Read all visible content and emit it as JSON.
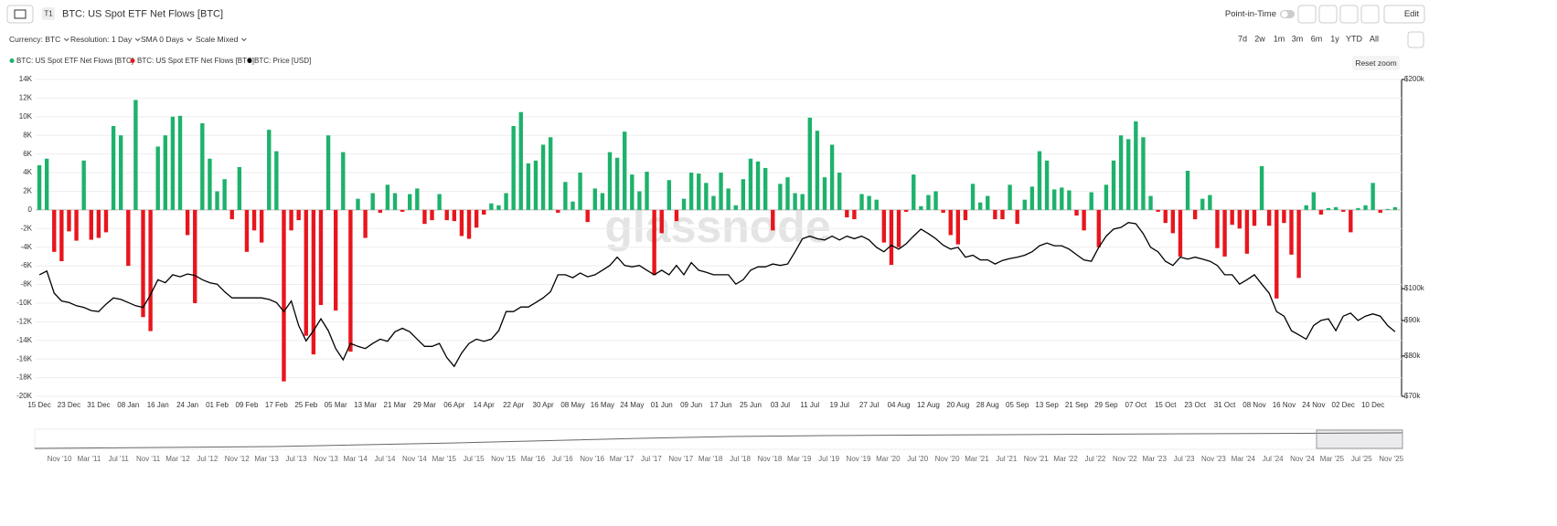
{
  "ui": {
    "title": "BTC: US Spot ETF Net Flows [BTC]",
    "tier": "T1",
    "point_in_time": "Point-in-Time",
    "edit": "Edit",
    "controls": [
      "Currency: BTC",
      "Resolution: 1 Day",
      "SMA 0 Days",
      "Scale Mixed"
    ],
    "ranges": [
      "7d",
      "2w",
      "1m",
      "3m",
      "6m",
      "1y",
      "YTD",
      "All"
    ],
    "reset_zoom": "Reset zoom",
    "watermark": "glassnode",
    "navigator_labels": [
      "Nov '10",
      "Mar '11",
      "Jul '11",
      "Nov '11",
      "Mar '12",
      "Jul '12",
      "Nov '12",
      "Mar '13",
      "Jul '13",
      "Nov '13",
      "Mar '14",
      "Jul '14",
      "Nov '14",
      "Mar '15",
      "Jul '15",
      "Nov '15",
      "Mar '16",
      "Jul '16",
      "Nov '16",
      "Mar '17",
      "Jul '17",
      "Nov '17",
      "Mar '18",
      "Jul '18",
      "Nov '18",
      "Mar '19",
      "Jul '19",
      "Nov '19",
      "Mar '20",
      "Jul '20",
      "Nov '20",
      "Mar '21",
      "Jul '21",
      "Nov '21",
      "Mar '22",
      "Jul '22",
      "Nov '22",
      "Mar '23",
      "Jul '23",
      "Nov '23",
      "Mar '24",
      "Jul '24",
      "Nov '24",
      "Mar '25",
      "Jul '25",
      "Nov '25"
    ]
  },
  "chart_data": {
    "type": "bar",
    "legend": "top-left",
    "grid": true,
    "categories": [
      "15 Dec",
      null,
      null,
      null,
      "23 Dec",
      null,
      null,
      null,
      "31 Dec",
      null,
      null,
      null,
      "08 Jan",
      null,
      null,
      null,
      "16 Jan",
      null,
      null,
      null,
      "24 Jan",
      null,
      null,
      null,
      "01 Feb",
      null,
      null,
      null,
      "09 Feb",
      null,
      null,
      null,
      "17 Feb",
      null,
      null,
      null,
      "25 Feb",
      null,
      null,
      null,
      "05 Mar",
      null,
      null,
      null,
      "13 Mar",
      null,
      null,
      null,
      "21 Mar",
      null,
      null,
      null,
      "29 Mar",
      null,
      null,
      null,
      "06 Apr",
      null,
      null,
      null,
      "14 Apr",
      null,
      null,
      null,
      "22 Apr",
      null,
      null,
      null,
      "30 Apr",
      null,
      null,
      null,
      "08 May",
      null,
      null,
      null,
      "16 May",
      null,
      null,
      null,
      "24 May",
      null,
      null,
      null,
      "01 Jun",
      null,
      null,
      null,
      "09 Jun",
      null,
      null,
      null,
      "17 Jun",
      null,
      null,
      null,
      "25 Jun",
      null,
      null,
      null,
      "03 Jul",
      null,
      null,
      null,
      "11 Jul",
      null,
      null,
      null,
      "19 Jul",
      null,
      null,
      null,
      "27 Jul",
      null,
      null,
      null,
      "04 Aug",
      null,
      null,
      null,
      "12 Aug",
      null,
      null,
      null,
      "20 Aug",
      null,
      null,
      null,
      "28 Aug",
      null,
      null,
      null,
      "05 Sep",
      null,
      null,
      null,
      "13 Sep",
      null,
      null,
      null,
      "21 Sep",
      null,
      null,
      null,
      "29 Sep",
      null,
      null,
      null,
      "07 Oct",
      null,
      null,
      null,
      "15 Oct",
      null,
      null,
      null,
      "23 Oct",
      null,
      null,
      null,
      "31 Oct",
      null,
      null,
      null,
      "08 Nov",
      null,
      null,
      null,
      "16 Nov",
      null,
      null,
      null,
      "24 Nov",
      null,
      null,
      null,
      "02 Dec",
      null,
      null,
      null,
      "10 Dec",
      null,
      null,
      null
    ],
    "ylim": [
      -20000,
      14000
    ],
    "yticks": [
      {
        "value": -20000,
        "label": "-20K"
      },
      {
        "value": -18000,
        "label": "-18K"
      },
      {
        "value": -16000,
        "label": "-16K"
      },
      {
        "value": -14000,
        "label": "-14K"
      },
      {
        "value": -12000,
        "label": "-12K"
      },
      {
        "value": -10000,
        "label": "-10K"
      },
      {
        "value": -8000,
        "label": "-8K"
      },
      {
        "value": -6000,
        "label": "-6K"
      },
      {
        "value": -4000,
        "label": "-4K"
      },
      {
        "value": -2000,
        "label": "-2K"
      },
      0,
      {
        "value": 2000,
        "label": "2K"
      },
      {
        "value": 4000,
        "label": "4K"
      },
      {
        "value": 6000,
        "label": "6K"
      },
      {
        "value": 8000,
        "label": "8K"
      },
      {
        "value": 10000,
        "label": "10K"
      },
      {
        "value": 12000,
        "label": "12K"
      },
      {
        "value": 14000,
        "label": "14K"
      }
    ],
    "y2lim": [
      70000,
      200000
    ],
    "y2_scale": "log",
    "y2ticks": [
      {
        "value": 70000,
        "label": "$70k"
      },
      {
        "value": 80000,
        "label": "$80k"
      },
      {
        "value": 90000,
        "label": "$90k"
      },
      {
        "value": 100000,
        "label": "$100k"
      },
      {
        "value": 200000,
        "label": "$200k"
      }
    ],
    "series": [
      {
        "name": "BTC: US Spot ETF Net Flows [BTC]",
        "color": "#1db26b",
        "values": [
          4800,
          5500,
          null,
          null,
          null,
          null,
          5300,
          null,
          null,
          null,
          9000,
          8000,
          null,
          11800,
          null,
          null,
          6800,
          8000,
          10000,
          10100,
          null,
          null,
          9300,
          5500,
          2000,
          3300,
          null,
          4600,
          null,
          null,
          null,
          8600,
          6300,
          null,
          null,
          null,
          null,
          null,
          null,
          8000,
          null,
          6200,
          null,
          1200,
          null,
          1800,
          null,
          2700,
          1800,
          null,
          1700,
          2300,
          null,
          null,
          1700,
          null,
          null,
          null,
          null,
          null,
          null,
          700,
          500,
          1800,
          9000,
          10500,
          5000,
          5300,
          7000,
          7800,
          null,
          3000,
          900,
          4000,
          null,
          2300,
          1800,
          6200,
          5600,
          8400,
          3800,
          2000,
          4100,
          null,
          null,
          3200,
          null,
          1200,
          4000,
          3900,
          2900,
          1500,
          4000,
          2300,
          500,
          3300,
          5500,
          5200,
          4500,
          null,
          2800,
          3500,
          1800,
          1700,
          9900,
          8500,
          3500,
          7000,
          4000,
          null,
          null,
          1700,
          1500,
          1100,
          null,
          null,
          null,
          null,
          3800,
          400,
          1600,
          2000,
          null,
          null,
          null,
          null,
          2800,
          800,
          1500,
          null,
          null,
          2700,
          null,
          1100,
          2500,
          6300,
          5300,
          2200,
          2400,
          2100,
          null,
          null,
          1900,
          null,
          2700,
          5300,
          8000,
          7600,
          9500,
          7800,
          1500,
          null,
          null,
          null,
          null,
          4200,
          null,
          1200,
          1600,
          null,
          null,
          null,
          null,
          null,
          null,
          4700,
          null,
          null,
          null,
          null,
          null,
          500,
          1900,
          null,
          200,
          300,
          null,
          null,
          200,
          500,
          2900,
          null,
          100,
          300
        ]
      },
      {
        "name": "BTC: US Spot ETF Net Flows [BTC]",
        "color": "#e8151d",
        "values": [
          null,
          null,
          -4500,
          -5500,
          -2300,
          -3300,
          null,
          -3200,
          -3000,
          -2400,
          null,
          null,
          -6000,
          null,
          -11500,
          -13000,
          null,
          null,
          null,
          null,
          -2700,
          -10000,
          null,
          null,
          null,
          null,
          -1000,
          null,
          -4500,
          -2200,
          -3500,
          null,
          null,
          -18400,
          -2200,
          -1100,
          -13500,
          -15500,
          -10200,
          null,
          -10800,
          null,
          -15200,
          null,
          -3000,
          null,
          -300,
          null,
          null,
          -200,
          null,
          null,
          -1500,
          -1100,
          null,
          -1100,
          -1200,
          -2800,
          -3100,
          -1900,
          -500,
          null,
          null,
          null,
          null,
          null,
          null,
          null,
          null,
          null,
          -300,
          null,
          null,
          null,
          -1300,
          null,
          null,
          null,
          null,
          null,
          null,
          null,
          null,
          -7000,
          -2500,
          null,
          -1200,
          null,
          null,
          null,
          null,
          null,
          null,
          null,
          null,
          null,
          null,
          null,
          null,
          -2200,
          null,
          null,
          null,
          null,
          null,
          null,
          null,
          null,
          null,
          -800,
          -1000,
          null,
          null,
          null,
          -3500,
          -5900,
          -4000,
          -200,
          null,
          null,
          null,
          null,
          -300,
          -2700,
          -3700,
          -1100,
          null,
          null,
          null,
          -1000,
          -1000,
          null,
          -1500,
          null,
          null,
          null,
          null,
          null,
          null,
          null,
          -600,
          -2200,
          null,
          -4000,
          null,
          null,
          null,
          null,
          null,
          null,
          null,
          -200,
          -1400,
          -2500,
          -5000,
          null,
          -1000,
          null,
          null,
          -4100,
          -5000,
          -1600,
          -2000,
          -4700,
          -1700,
          null,
          -1700,
          -9500,
          -1400,
          -4800,
          -7300,
          null,
          null,
          -500,
          null,
          null,
          -200,
          -2400,
          null,
          null,
          null,
          -300,
          null,
          null
        ]
      },
      {
        "name": "BTC: Price [USD]",
        "color": "#000000",
        "axis": "y2",
        "type": "line",
        "values": [
          104700,
          106000,
          98500,
          96000,
          95500,
          94500,
          94000,
          93000,
          92700,
          95000,
          97000,
          96500,
          95500,
          94500,
          94000,
          98000,
          103000,
          102000,
          104700,
          104000,
          105000,
          104500,
          103000,
          102000,
          101500,
          99000,
          97000,
          97000,
          97000,
          97000,
          97000,
          96500,
          95500,
          92700,
          96000,
          88500,
          84100,
          87000,
          90500,
          87000,
          82000,
          79000,
          83400,
          82600,
          82000,
          83400,
          84600,
          84000,
          86700,
          87700,
          86700,
          84600,
          82600,
          82600,
          83400,
          79600,
          77300,
          80800,
          83400,
          84600,
          84000,
          84600,
          87000,
          92700,
          92700,
          94100,
          94100,
          95500,
          97000,
          99000,
          104700,
          104700,
          103700,
          105300,
          104000,
          104700,
          106300,
          108000,
          111000,
          108000,
          107500,
          108000,
          106300,
          104700,
          106300,
          104700,
          108000,
          104700,
          109000,
          106300,
          105600,
          104700,
          104700,
          104700,
          101500,
          103000,
          106300,
          107500,
          107500,
          108500,
          108000,
          108500,
          113000,
          118000,
          119000,
          118000,
          117500,
          119000,
          117500,
          119000,
          118000,
          119000,
          117500,
          114700,
          113000,
          115500,
          114000,
          116000,
          119000,
          121800,
          120000,
          118000,
          115500,
          114000,
          114700,
          111000,
          111700,
          110000,
          110000,
          108500,
          109800,
          110500,
          111000,
          111700,
          113000,
          115300,
          116300,
          115300,
          115300,
          114000,
          111900,
          110000,
          109500,
          114700,
          119000,
          121800,
          122500,
          124500,
          124000,
          120000,
          114700,
          113000,
          109500,
          108000,
          111000,
          110300,
          111000,
          110300,
          109500,
          108000,
          104700,
          104700,
          101500,
          103000,
          104700,
          101500,
          98500,
          92700,
          91300,
          87000,
          85800,
          84600,
          88500,
          90000,
          90500,
          87000,
          91300,
          92200,
          90000,
          91300,
          92000,
          91300,
          88500,
          86700
        ]
      }
    ]
  }
}
